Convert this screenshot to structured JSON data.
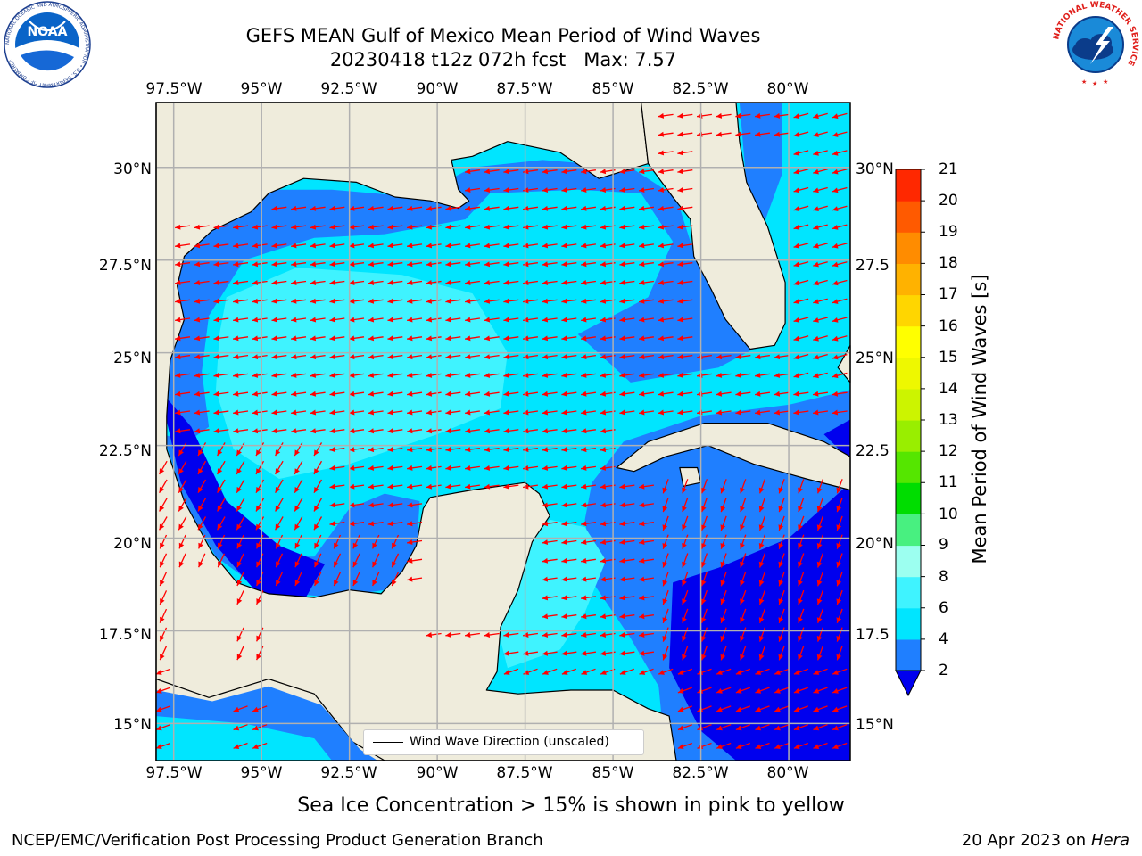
{
  "header": {
    "title_line1": "GEFS MEAN Gulf of Mexico Mean Period of Wind Waves",
    "title_line2": "20230418 t12z 072h fcst   Max: 7.57"
  },
  "logos": {
    "left": "NOAA",
    "left_ring": "NATIONAL OCEANIC AND ATMOSPHERIC ADMINISTRATION • U.S. DEPARTMENT OF COMMERCE",
    "right_ring": "NATIONAL WEATHER SERVICE"
  },
  "map": {
    "x_ticks": [
      "97.5°W",
      "95°W",
      "92.5°W",
      "90°W",
      "87.5°W",
      "85°W",
      "82.5°W",
      "80°W"
    ],
    "y_ticks": [
      "30°N",
      "27.5°N",
      "25°N",
      "22.5°N",
      "20°N",
      "17.5°N",
      "15°N"
    ],
    "y_ticks_right": [
      "30°N",
      "27.5",
      "25°N",
      "22.5",
      "20°N",
      "17.5",
      "15°N"
    ],
    "extent": {
      "lon": [
        -98,
        -78.25
      ],
      "lat": [
        14,
        31.75
      ]
    },
    "legend_label": "Wind Wave Direction (unscaled)",
    "arrow_color": "#ff0000",
    "land_color": "#efecdc",
    "grid": true
  },
  "colorbar": {
    "title": "Mean Period of Wind Waves [s]",
    "levels": [
      "2",
      "4",
      "6",
      "8",
      "9",
      "10",
      "11",
      "12",
      "13",
      "14",
      "15",
      "16",
      "17",
      "18",
      "19",
      "20",
      "21"
    ],
    "colors": [
      "#1f7fff",
      "#00e5ff",
      "#3ff3ff",
      "#9cfff0",
      "#48f080",
      "#00dd00",
      "#55e600",
      "#99ee00",
      "#ccf400",
      "#eef800",
      "#ffff00",
      "#ffd600",
      "#ffb200",
      "#ff8c00",
      "#ff5a00",
      "#ff2800"
    ],
    "under_color": "#0000ee"
  },
  "note": "Sea Ice Concentration > 15% is shown in pink to yellow",
  "footer": {
    "left": "NCEP/EMC/Verification Post Processing Product Generation Branch",
    "right_date": "20 Apr 2023 on ",
    "right_host": "Hera"
  }
}
